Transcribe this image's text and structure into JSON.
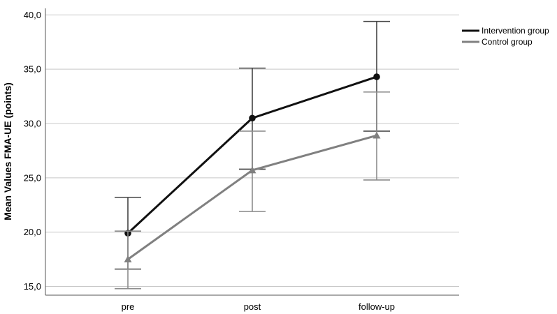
{
  "chart_data": {
    "type": "line",
    "title": "",
    "xlabel": "",
    "ylabel": "Mean Values FMA-UE (points)",
    "categories": [
      "pre",
      "post",
      "follow-up"
    ],
    "yticks": [
      "15,0",
      "20,0",
      "25,0",
      "30,0",
      "35,0",
      "40,0"
    ],
    "ylim": [
      14.2,
      40.6
    ],
    "grid": "horizontal",
    "legend_position": "top-right",
    "error_bars": true,
    "series": [
      {
        "name": "Intervention group",
        "color": "#111111",
        "marker": "circle",
        "values": [
          19.9,
          30.5,
          34.3
        ],
        "lower": [
          16.6,
          25.8,
          29.3
        ],
        "upper": [
          23.2,
          35.1,
          39.4
        ]
      },
      {
        "name": "Control group",
        "color": "#808080",
        "marker": "triangle",
        "values": [
          17.5,
          25.7,
          28.9
        ],
        "lower": [
          14.8,
          21.9,
          24.8
        ],
        "upper": [
          20.1,
          29.3,
          32.9
        ]
      }
    ]
  }
}
